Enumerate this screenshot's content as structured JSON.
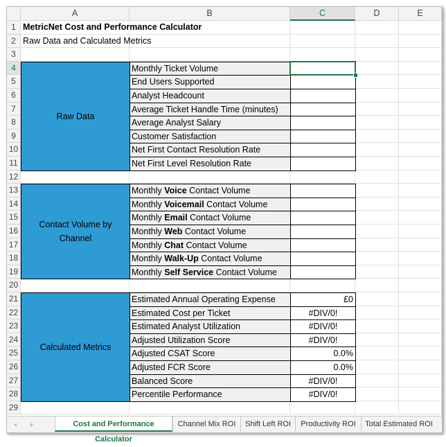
{
  "columns": [
    "A",
    "B",
    "C",
    "D",
    "E"
  ],
  "rows": [
    1,
    2,
    3,
    4,
    5,
    6,
    7,
    8,
    9,
    10,
    11,
    12,
    13,
    14,
    15,
    16,
    17,
    18,
    19,
    20,
    21,
    22,
    23,
    24,
    25,
    26,
    27,
    28,
    29
  ],
  "title": "MetricNet Cost and Performance Calculator",
  "subtitle": "Raw Data and Calculated Metrics",
  "sections": [
    {
      "label": "Raw Data",
      "items": [
        {
          "label": "Monthly Ticket Volume"
        },
        {
          "label": "End Users Supported"
        },
        {
          "label": "Analyst Headcount"
        },
        {
          "label": "Average Ticket Handle Time (minutes)"
        },
        {
          "label": "Average Analyst Salary"
        },
        {
          "label": "Customer Satisfaction"
        },
        {
          "label": "Net First Contact Resolution Rate"
        },
        {
          "label": "Net First Level Resolution Rate"
        }
      ]
    },
    {
      "label": "Contact Volume by Channel",
      "items": [
        {
          "parts": [
            "Monthly ",
            "Voice",
            " Contact Volume"
          ]
        },
        {
          "parts": [
            "Monthly ",
            "Voicemail",
            " Contact Volume"
          ]
        },
        {
          "parts": [
            "Monthly ",
            "Email",
            " Contact Volume"
          ]
        },
        {
          "parts": [
            "Monthly ",
            "Web",
            " Contact Volume"
          ]
        },
        {
          "parts": [
            "Monthly ",
            "Chat",
            " Contact Volume"
          ]
        },
        {
          "parts": [
            "Monthly ",
            "Walk-Up",
            " Contact Volume"
          ]
        },
        {
          "parts": [
            "Monthly ",
            "Self Service",
            " Contact Volume"
          ]
        }
      ]
    },
    {
      "label": "Calculated Metrics",
      "items": [
        {
          "label": "Estimated Annual Operating Expense",
          "value": "£0"
        },
        {
          "label": "Estimated Cost per Ticket",
          "value": "#DIV/0!"
        },
        {
          "label": "Estimated Analyst Utilization",
          "value": "#DIV/0!"
        },
        {
          "label": "Adjusted Utilization Score",
          "value": "#DIV/0!"
        },
        {
          "label": "Adjusted CSAT Score",
          "value": "0.0%"
        },
        {
          "label": "Adjusted FCR Score",
          "value": "0.0%"
        },
        {
          "label": "Balanced Score",
          "value": "#DIV/0!"
        },
        {
          "label": "Percentile Performance",
          "value": "#DIV/0!"
        }
      ]
    }
  ],
  "tabs": [
    "Cost and Performance Calculator",
    "Channel Mix ROI",
    "Shift Left ROI",
    "Productivity ROI",
    "Total Estimated ROI"
  ]
}
